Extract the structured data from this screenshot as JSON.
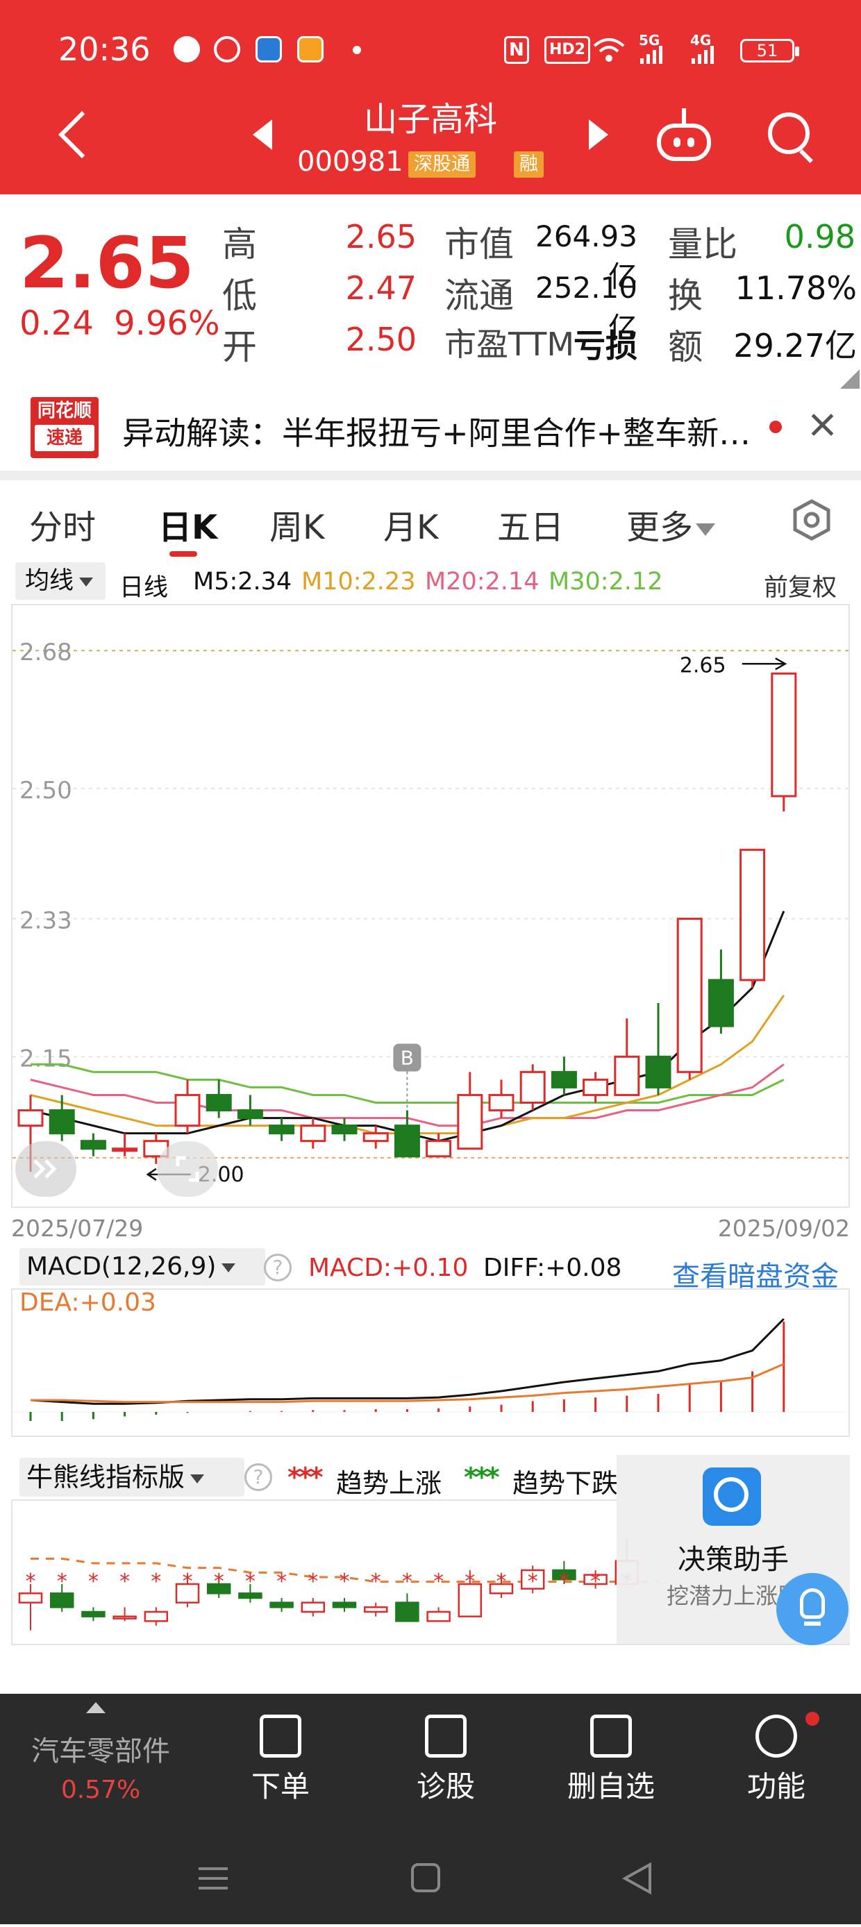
{
  "status_bar": {
    "time": "20:36",
    "nfc": "N",
    "hd": "HD2",
    "sig1": "5G",
    "sig2": "4G",
    "battery": "51"
  },
  "header": {
    "stock_name": "山子高科",
    "stock_code": "000981",
    "tag_connect": "深股通",
    "tag_margin": "融"
  },
  "quote": {
    "price": "2.65",
    "change": "0.24",
    "change_pct": "9.96%",
    "rows": [
      {
        "l1": "高",
        "v1": "2.65",
        "l2": "市值",
        "v2": "264.93亿",
        "l3": "量比",
        "v3": "0.98"
      },
      {
        "l1": "低",
        "v1": "2.47",
        "l2": "流通",
        "v2": "252.10亿",
        "l3": "换",
        "v3": "11.78%"
      },
      {
        "l1": "开",
        "v1": "2.50",
        "l2": "市盈TTM",
        "v2": "亏损",
        "l3": "额",
        "v3": "29.27亿"
      }
    ]
  },
  "news": {
    "logo_top": "同花顺",
    "logo_bottom": "速递",
    "text": "异动解读：半年报扭亏+阿里合作+整车新…"
  },
  "tabs": [
    "分时",
    "日K",
    "周K",
    "月K",
    "五日",
    "更多"
  ],
  "indicators": {
    "selector": "均线",
    "period": "日线",
    "m5": "M5:2.34",
    "m10": "M10:2.23",
    "m20": "M20:2.14",
    "m30": "M30:2.12",
    "adjust": "前复权"
  },
  "colors": {
    "brand_red": "#e93030",
    "up_red": "#e02a2a",
    "down_green": "#1e7a1e",
    "m5": "#111111",
    "m10": "#e0a020",
    "m20": "#e86080",
    "m30": "#6cc040",
    "dea": "#e87a30",
    "link_blue": "#2a7ad8"
  },
  "chart_data": {
    "type": "candlestick",
    "y_ticks": [
      "2.68",
      "2.50",
      "2.33",
      "2.15"
    ],
    "ylim": [
      1.96,
      2.73
    ],
    "annotations": {
      "high_marker": "2.65",
      "low_marker": "2.00",
      "buy_marker": "B"
    },
    "date_start": "2025/07/29",
    "date_end": "2025/09/02",
    "candles": [
      {
        "o": 2.06,
        "c": 2.08,
        "h": 2.1,
        "l": 2.0
      },
      {
        "o": 2.08,
        "c": 2.05,
        "h": 2.1,
        "l": 2.04
      },
      {
        "o": 2.04,
        "c": 2.03,
        "h": 2.05,
        "l": 2.02
      },
      {
        "o": 2.03,
        "c": 2.03,
        "h": 2.05,
        "l": 2.02
      },
      {
        "o": 2.02,
        "c": 2.04,
        "h": 2.05,
        "l": 2.01
      },
      {
        "o": 2.06,
        "c": 2.1,
        "h": 2.12,
        "l": 2.05
      },
      {
        "o": 2.1,
        "c": 2.08,
        "h": 2.12,
        "l": 2.07
      },
      {
        "o": 2.08,
        "c": 2.07,
        "h": 2.1,
        "l": 2.06
      },
      {
        "o": 2.06,
        "c": 2.05,
        "h": 2.07,
        "l": 2.04
      },
      {
        "o": 2.04,
        "c": 2.06,
        "h": 2.07,
        "l": 2.03
      },
      {
        "o": 2.06,
        "c": 2.05,
        "h": 2.07,
        "l": 2.04
      },
      {
        "o": 2.04,
        "c": 2.05,
        "h": 2.06,
        "l": 2.03
      },
      {
        "o": 2.06,
        "c": 2.02,
        "h": 2.08,
        "l": 2.02
      },
      {
        "o": 2.02,
        "c": 2.04,
        "h": 2.05,
        "l": 2.02
      },
      {
        "o": 2.03,
        "c": 2.1,
        "h": 2.13,
        "l": 2.03
      },
      {
        "o": 2.08,
        "c": 2.1,
        "h": 2.12,
        "l": 2.07
      },
      {
        "o": 2.09,
        "c": 2.13,
        "h": 2.14,
        "l": 2.08
      },
      {
        "o": 2.13,
        "c": 2.11,
        "h": 2.15,
        "l": 2.1
      },
      {
        "o": 2.1,
        "c": 2.12,
        "h": 2.13,
        "l": 2.09
      },
      {
        "o": 2.1,
        "c": 2.15,
        "h": 2.2,
        "l": 2.1
      },
      {
        "o": 2.15,
        "c": 2.11,
        "h": 2.22,
        "l": 2.1
      },
      {
        "o": 2.13,
        "c": 2.33,
        "h": 2.33,
        "l": 2.12
      },
      {
        "o": 2.25,
        "c": 2.19,
        "h": 2.29,
        "l": 2.18
      },
      {
        "o": 2.25,
        "c": 2.42,
        "h": 2.42,
        "l": 2.24
      },
      {
        "o": 2.49,
        "c": 2.65,
        "h": 2.65,
        "l": 2.47
      }
    ],
    "ma5": [
      2.08,
      2.07,
      2.06,
      2.05,
      2.05,
      2.05,
      2.06,
      2.07,
      2.07,
      2.07,
      2.06,
      2.06,
      2.05,
      2.04,
      2.05,
      2.06,
      2.08,
      2.1,
      2.11,
      2.12,
      2.13,
      2.17,
      2.2,
      2.24,
      2.34
    ],
    "ma10": [
      2.1,
      2.09,
      2.08,
      2.07,
      2.06,
      2.06,
      2.06,
      2.06,
      2.06,
      2.06,
      2.06,
      2.05,
      2.05,
      2.05,
      2.05,
      2.06,
      2.07,
      2.07,
      2.08,
      2.09,
      2.1,
      2.12,
      2.14,
      2.17,
      2.23
    ],
    "ma20": [
      2.12,
      2.11,
      2.1,
      2.1,
      2.09,
      2.09,
      2.08,
      2.08,
      2.08,
      2.07,
      2.07,
      2.07,
      2.07,
      2.06,
      2.06,
      2.07,
      2.07,
      2.07,
      2.07,
      2.08,
      2.08,
      2.09,
      2.1,
      2.11,
      2.14
    ],
    "ma30": [
      2.14,
      2.14,
      2.13,
      2.13,
      2.13,
      2.12,
      2.12,
      2.11,
      2.11,
      2.1,
      2.1,
      2.09,
      2.09,
      2.09,
      2.09,
      2.09,
      2.09,
      2.09,
      2.09,
      2.09,
      2.09,
      2.1,
      2.1,
      2.1,
      2.12
    ]
  },
  "macd": {
    "selector": "MACD(12,26,9)",
    "macd": "MACD:+0.10",
    "diff": "DIFF:+0.08",
    "dea": "DEA:+0.03",
    "link": "查看暗盘资金",
    "hist": [
      -0.01,
      -0.01,
      -0.008,
      -0.005,
      -0.003,
      -0.001,
      0.0,
      0.001,
      0.001,
      0.002,
      0.002,
      0.003,
      0.003,
      0.004,
      0.006,
      0.008,
      0.012,
      0.014,
      0.016,
      0.018,
      0.02,
      0.03,
      0.034,
      0.045,
      0.1
    ],
    "diff_line": [
      -0.01,
      -0.012,
      -0.014,
      -0.014,
      -0.013,
      -0.011,
      -0.01,
      -0.009,
      -0.009,
      -0.008,
      -0.008,
      -0.008,
      -0.008,
      -0.007,
      -0.004,
      0.0,
      0.005,
      0.01,
      0.014,
      0.018,
      0.022,
      0.03,
      0.034,
      0.045,
      0.08
    ],
    "dea_line": [
      -0.01,
      -0.01,
      -0.011,
      -0.012,
      -0.012,
      -0.012,
      -0.012,
      -0.012,
      -0.012,
      -0.011,
      -0.011,
      -0.011,
      -0.011,
      -0.01,
      -0.009,
      -0.007,
      -0.005,
      -0.002,
      0.0,
      0.002,
      0.005,
      0.008,
      0.011,
      0.015,
      0.03
    ]
  },
  "bull_bear": {
    "selector": "牛熊线指标版",
    "up_label": "趋势上涨",
    "down_label": "趋势下跌",
    "star": "*"
  },
  "assistant": {
    "title": "决策助手",
    "sub": "挖潜力上涨股"
  },
  "bottom": {
    "sector": "汽车零部件",
    "sector_pct": "0.57%",
    "buttons": [
      "下单",
      "诊股",
      "删自选",
      "功能"
    ]
  }
}
